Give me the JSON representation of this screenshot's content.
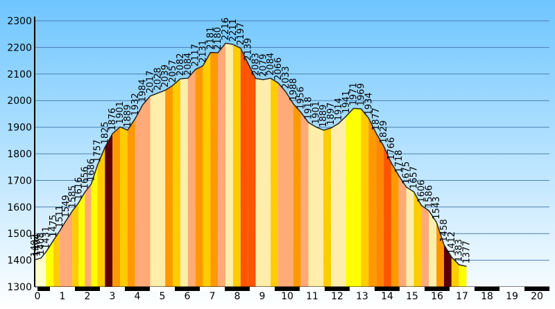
{
  "chart_data": {
    "type": "area",
    "title": "",
    "xlabel": "",
    "ylabel": "",
    "xlim": [
      0,
      20.5
    ],
    "ylim": [
      1300,
      2300
    ],
    "y_ticks": [
      "1300",
      "1400",
      "1500",
      "1600",
      "1700",
      "1800",
      "1900",
      "2000",
      "2100",
      "2200",
      "2300"
    ],
    "x_ticks": [
      "0",
      "1",
      "2",
      "3",
      "4",
      "5",
      "6",
      "7",
      "8",
      "9",
      "10",
      "11",
      "12",
      "13",
      "14",
      "15",
      "16",
      "17",
      "18",
      "19",
      "20"
    ],
    "grid": true,
    "background": {
      "top": "#6ec6ff",
      "bottom": "#ffffff"
    },
    "colors": [
      "#ffffcc",
      "#ffff00",
      "#ffcc00",
      "#ff9900",
      "#ffaa77",
      "#ff5500",
      "#5c0000",
      "#ff8800",
      "#ffeeaa"
    ],
    "points": [
      {
        "x": 0.0,
        "y": 1402,
        "label": "1402",
        "color": "#ffffcc"
      },
      {
        "x": 0.1,
        "y": 1404,
        "label": "1404",
        "color": "#ffffcc"
      },
      {
        "x": 0.25,
        "y": 1408,
        "label": "1408",
        "color": "#ffffcc"
      },
      {
        "x": 0.45,
        "y": 1431,
        "label": "1431",
        "color": "#ffff00"
      },
      {
        "x": 0.75,
        "y": 1475,
        "label": "1475",
        "color": "#ffcc00"
      },
      {
        "x": 1.0,
        "y": 1511,
        "label": "1511",
        "color": "#ffaa77"
      },
      {
        "x": 1.25,
        "y": 1549,
        "label": "1549",
        "color": "#ffaa77"
      },
      {
        "x": 1.5,
        "y": 1585,
        "label": "1585",
        "color": "#ffcc00"
      },
      {
        "x": 1.75,
        "y": 1616,
        "label": "1616",
        "color": "#ffff00"
      },
      {
        "x": 2.0,
        "y": 1656,
        "label": "1656",
        "color": "#ffaa77"
      },
      {
        "x": 2.25,
        "y": 1686,
        "label": "1686",
        "color": "#ffff00"
      },
      {
        "x": 2.5,
        "y": 1757,
        "label": "1757",
        "color": "#ffcc00"
      },
      {
        "x": 2.8,
        "y": 1825,
        "label": "1825",
        "color": "#5c0000"
      },
      {
        "x": 3.1,
        "y": 1876,
        "label": "1876",
        "color": "#ff9900"
      },
      {
        "x": 3.4,
        "y": 1901,
        "label": "1901",
        "color": "#ffcc00"
      },
      {
        "x": 3.7,
        "y": 1889,
        "label": "1889",
        "color": "#ff9900"
      },
      {
        "x": 4.0,
        "y": 1932,
        "label": "1932",
        "color": "#ffaa77"
      },
      {
        "x": 4.3,
        "y": 1984,
        "label": "1984",
        "color": "#ffaa77"
      },
      {
        "x": 4.6,
        "y": 2017,
        "label": "2017",
        "color": "#ffeeaa"
      },
      {
        "x": 4.9,
        "y": 2028,
        "label": "2028",
        "color": "#ffeeaa"
      },
      {
        "x": 5.2,
        "y": 2039,
        "label": "2039",
        "color": "#ff9900"
      },
      {
        "x": 5.5,
        "y": 2057,
        "label": "2057",
        "color": "#ffcc00"
      },
      {
        "x": 5.8,
        "y": 2082,
        "label": "2082",
        "color": "#ffeeaa"
      },
      {
        "x": 6.1,
        "y": 2084,
        "label": "2084",
        "color": "#ffaa77"
      },
      {
        "x": 6.4,
        "y": 2117,
        "label": "2117",
        "color": "#ff9900"
      },
      {
        "x": 6.7,
        "y": 2131,
        "label": "2131",
        "color": "#ffcc00"
      },
      {
        "x": 7.0,
        "y": 2181,
        "label": "2181",
        "color": "#ff9900"
      },
      {
        "x": 7.3,
        "y": 2180,
        "label": "2180",
        "color": "#ffaa77"
      },
      {
        "x": 7.6,
        "y": 2216,
        "label": "2216",
        "color": "#ffeeaa"
      },
      {
        "x": 7.9,
        "y": 2211,
        "label": "2211",
        "color": "#ffcc00"
      },
      {
        "x": 8.2,
        "y": 2197,
        "label": "2197",
        "color": "#ff5500"
      },
      {
        "x": 8.5,
        "y": 2139,
        "label": "2139",
        "color": "#ff5500"
      },
      {
        "x": 8.8,
        "y": 2083,
        "label": "2083",
        "color": "#ffeeaa"
      },
      {
        "x": 9.1,
        "y": 2079,
        "label": "2079",
        "color": "#ffeeaa"
      },
      {
        "x": 9.4,
        "y": 2084,
        "label": "2084",
        "color": "#ffcc00"
      },
      {
        "x": 9.7,
        "y": 2066,
        "label": "2066",
        "color": "#ffaa77"
      },
      {
        "x": 10.0,
        "y": 2033,
        "label": "2033",
        "color": "#ffaa77"
      },
      {
        "x": 10.3,
        "y": 1988,
        "label": "1988",
        "color": "#ff9900"
      },
      {
        "x": 10.6,
        "y": 1956,
        "label": "1956",
        "color": "#ffaa77"
      },
      {
        "x": 10.9,
        "y": 1918,
        "label": "1918",
        "color": "#ffeeaa"
      },
      {
        "x": 11.2,
        "y": 1901,
        "label": "1901",
        "color": "#ffeeaa"
      },
      {
        "x": 11.5,
        "y": 1889,
        "label": "1889",
        "color": "#ffcc00"
      },
      {
        "x": 11.8,
        "y": 1897,
        "label": "1897",
        "color": "#ffeeaa"
      },
      {
        "x": 12.1,
        "y": 1914,
        "label": "1914",
        "color": "#ffeeaa"
      },
      {
        "x": 12.4,
        "y": 1941,
        "label": "1941",
        "color": "#ffff00"
      },
      {
        "x": 12.7,
        "y": 1971,
        "label": "1971",
        "color": "#ffff00"
      },
      {
        "x": 13.0,
        "y": 1969,
        "label": "1969",
        "color": "#ffcc00"
      },
      {
        "x": 13.3,
        "y": 1934,
        "label": "1934",
        "color": "#ff9900"
      },
      {
        "x": 13.6,
        "y": 1877,
        "label": "1877",
        "color": "#ff8800"
      },
      {
        "x": 13.9,
        "y": 1829,
        "label": "1829",
        "color": "#ff5500"
      },
      {
        "x": 14.2,
        "y": 1766,
        "label": "1766",
        "color": "#ff9900"
      },
      {
        "x": 14.5,
        "y": 1718,
        "label": "1718",
        "color": "#ffaa77"
      },
      {
        "x": 14.8,
        "y": 1675,
        "label": "1675",
        "color": "#ffeeaa"
      },
      {
        "x": 15.1,
        "y": 1657,
        "label": "1657",
        "color": "#ffcc00"
      },
      {
        "x": 15.4,
        "y": 1606,
        "label": "1606",
        "color": "#ffaa77"
      },
      {
        "x": 15.7,
        "y": 1586,
        "label": "1586",
        "color": "#ffeeaa"
      },
      {
        "x": 16.0,
        "y": 1543,
        "label": "1543",
        "color": "#ff9900"
      },
      {
        "x": 16.3,
        "y": 1458,
        "label": "1458",
        "color": "#5c0000"
      },
      {
        "x": 16.6,
        "y": 1412,
        "label": "1412",
        "color": "#ffcc00"
      },
      {
        "x": 16.9,
        "y": 1383,
        "label": "1383",
        "color": "#ffff00"
      },
      {
        "x": 17.2,
        "y": 1377,
        "label": "1377",
        "color": "#ffeeaa"
      }
    ]
  }
}
